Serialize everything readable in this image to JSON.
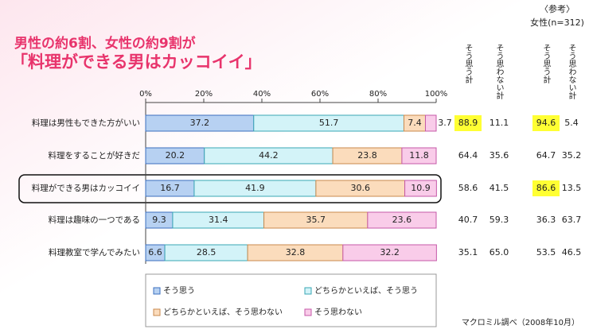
{
  "chart_data": {
    "type": "stacked-bar-horizontal",
    "title": "男性の約6割、女性の約9割が",
    "subtitle": "「料理ができる男はカッコイイ」",
    "source": "マクロミル調べ（2008年10月）",
    "categories": [
      "料理は男性もできた方がいい",
      "料理をすることが好きだ",
      "料理ができる男はカッコイイ",
      "料理は趣味の一つである",
      "料理教室で学んでみたい"
    ],
    "series": [
      {
        "name": "そう思う",
        "color": "#b7d1f2",
        "values": [
          37.2,
          20.2,
          16.7,
          9.3,
          6.6
        ]
      },
      {
        "name": "どちらかといえば、そう思う",
        "color": "#d3f3f8",
        "values": [
          51.7,
          44.2,
          41.9,
          31.4,
          28.5
        ]
      },
      {
        "name": "どちらかといえば、そう思わない",
        "color": "#fbdcbc",
        "values": [
          7.4,
          23.8,
          30.6,
          35.7,
          32.8
        ]
      },
      {
        "name": "そう思わない",
        "color": "#f9cce9",
        "values": [
          3.7,
          11.8,
          10.9,
          23.6,
          32.2
        ]
      }
    ],
    "xlim": [
      0,
      100
    ],
    "xticks": [
      {
        "value": 0,
        "label": "0%"
      },
      {
        "value": 20,
        "label": "20%"
      },
      {
        "value": 40,
        "label": "40%"
      },
      {
        "value": 60,
        "label": "60%"
      },
      {
        "value": 80,
        "label": "80%"
      },
      {
        "value": 100,
        "label": "100%"
      }
    ],
    "table": {
      "reference_label": "〈参考〉",
      "reference_group": "女性(n=312)",
      "highlight_color": "#ffff33",
      "columns": [
        "そう思う計",
        "そう思わない計",
        "そう思う計",
        "そう思わない計"
      ],
      "rows": [
        [
          {
            "text": "88.9",
            "highlight": true
          },
          "11.1",
          {
            "text": "94.6",
            "highlight": true
          },
          "5.4"
        ],
        [
          "64.4",
          "35.6",
          "64.7",
          "35.2"
        ],
        [
          "58.6",
          "41.5",
          {
            "text": "86.6",
            "highlight": true
          },
          "13.5"
        ],
        [
          "40.7",
          "59.3",
          "36.3",
          "63.7"
        ],
        [
          "35.1",
          "65.0",
          "53.5",
          "46.5"
        ]
      ]
    }
  }
}
